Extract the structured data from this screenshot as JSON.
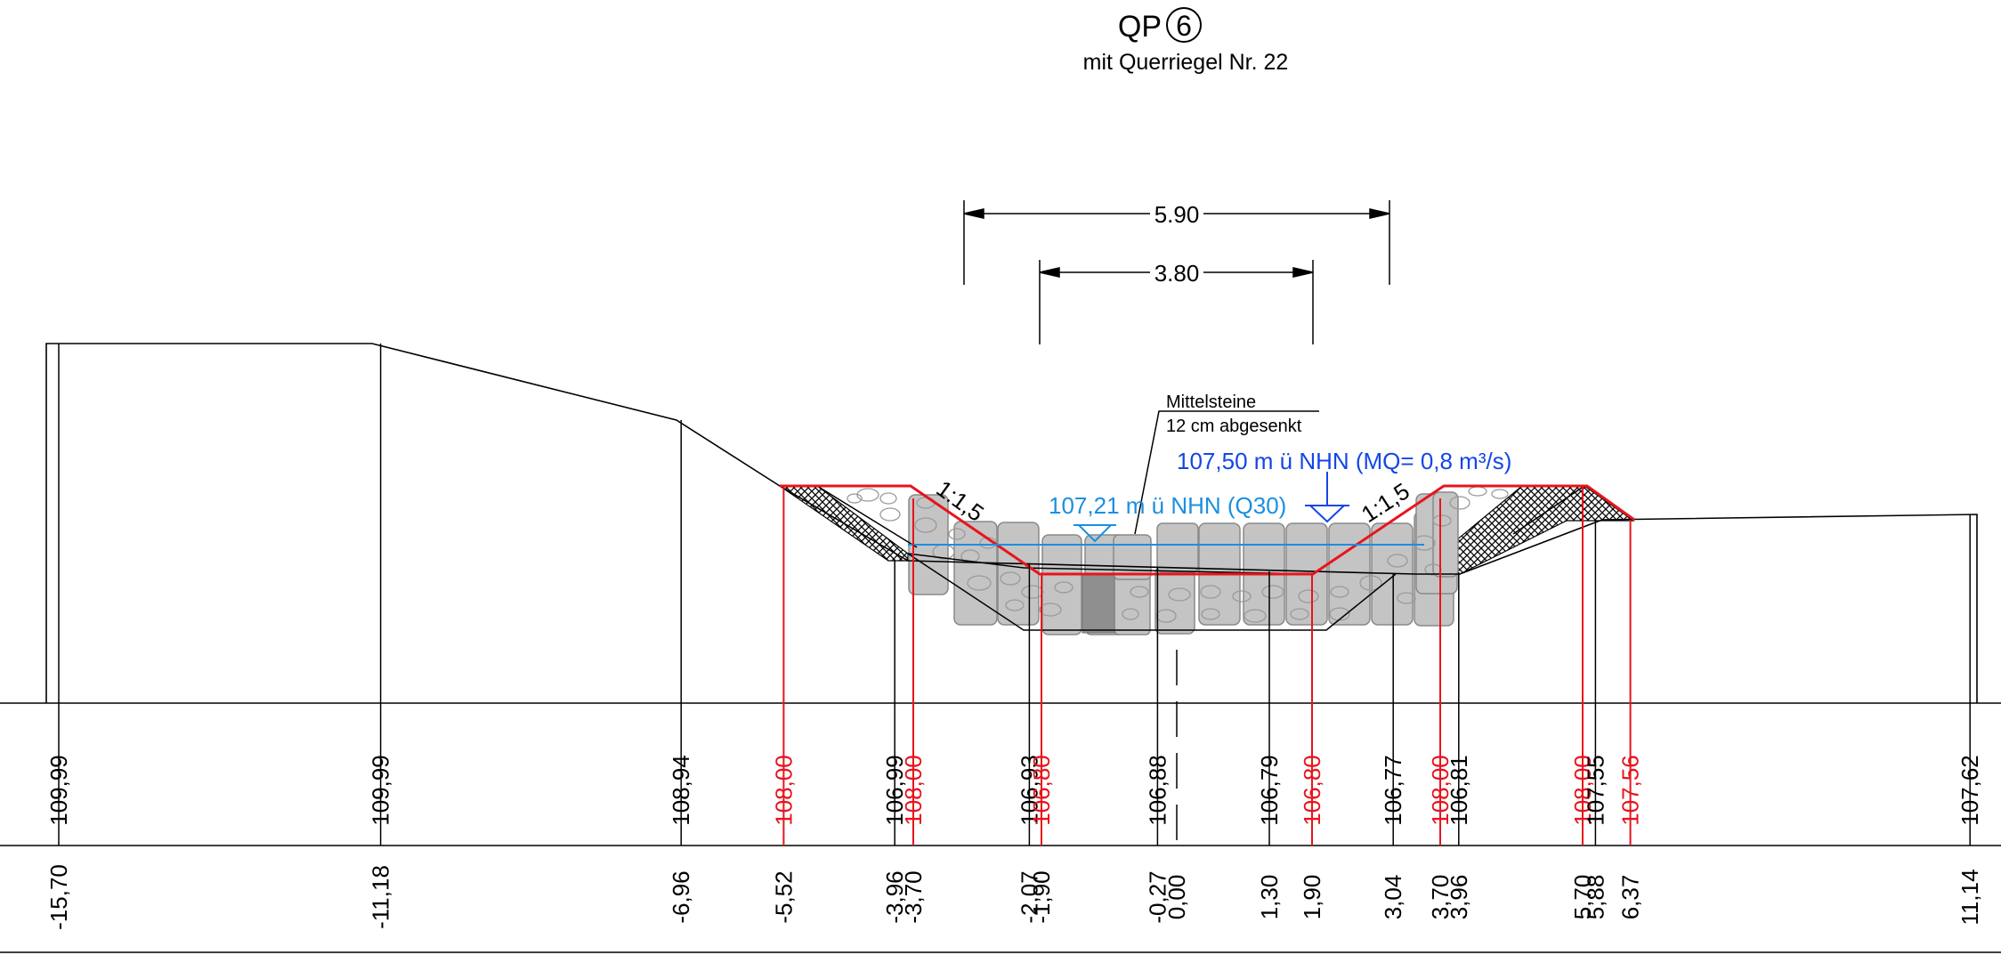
{
  "title": {
    "prefix": "QP",
    "number": "6",
    "subtitle": "mit Querriegel Nr. 22"
  },
  "dimensions": {
    "outer": "5.90",
    "inner": "3.80"
  },
  "slopes": {
    "left": "1:1,5",
    "right": "1:1,5"
  },
  "callout": {
    "line1": "Mittelsteine",
    "line2": "12 cm abgesenkt"
  },
  "water_levels": {
    "q30": "107,21 m ü NHN (Q30)",
    "mq": "107,50 m ü NHN (MQ= 0,8 m³/s)"
  },
  "colors": {
    "existing": "#000000",
    "planned": "#e8141c",
    "water_q30": "#1a8fe0",
    "water_mq": "#1446e6",
    "stone_fill": "#c4c4c4",
    "stone_stroke": "#8a8a8a"
  },
  "stations": [
    {
      "x": "-15,70",
      "elev": "109,99",
      "type": "existing"
    },
    {
      "x": "-11,18",
      "elev": "109,99",
      "type": "existing"
    },
    {
      "x": "-6,96",
      "elev": "108,94",
      "type": "existing"
    },
    {
      "x": "-5,52",
      "elev": "108,00",
      "type": "planned"
    },
    {
      "x": "-3,96",
      "elev": "106,99",
      "type": "existing"
    },
    {
      "x": "-3,70",
      "elev": "108,00",
      "type": "planned"
    },
    {
      "x": "-2,07",
      "elev": "106,93",
      "type": "existing"
    },
    {
      "x": "-1,90",
      "elev": "106,80",
      "type": "planned"
    },
    {
      "x": "-0,27",
      "elev": "106,88",
      "type": "existing"
    },
    {
      "x": "0,00",
      "elev": "",
      "type": "axis"
    },
    {
      "x": "1,30",
      "elev": "106,79",
      "type": "existing"
    },
    {
      "x": "1,90",
      "elev": "106,80",
      "type": "planned"
    },
    {
      "x": "3,04",
      "elev": "106,77",
      "type": "existing"
    },
    {
      "x": "3,70",
      "elev": "108,00",
      "type": "planned"
    },
    {
      "x": "3,96",
      "elev": "106,81",
      "type": "existing"
    },
    {
      "x": "5,70",
      "elev": "108,00",
      "type": "planned"
    },
    {
      "x": "5,88",
      "elev": "107,55",
      "type": "existing"
    },
    {
      "x": "6,37",
      "elev": "107,56",
      "type": "planned"
    },
    {
      "x": "11,14",
      "elev": "107,62",
      "type": "existing"
    }
  ]
}
